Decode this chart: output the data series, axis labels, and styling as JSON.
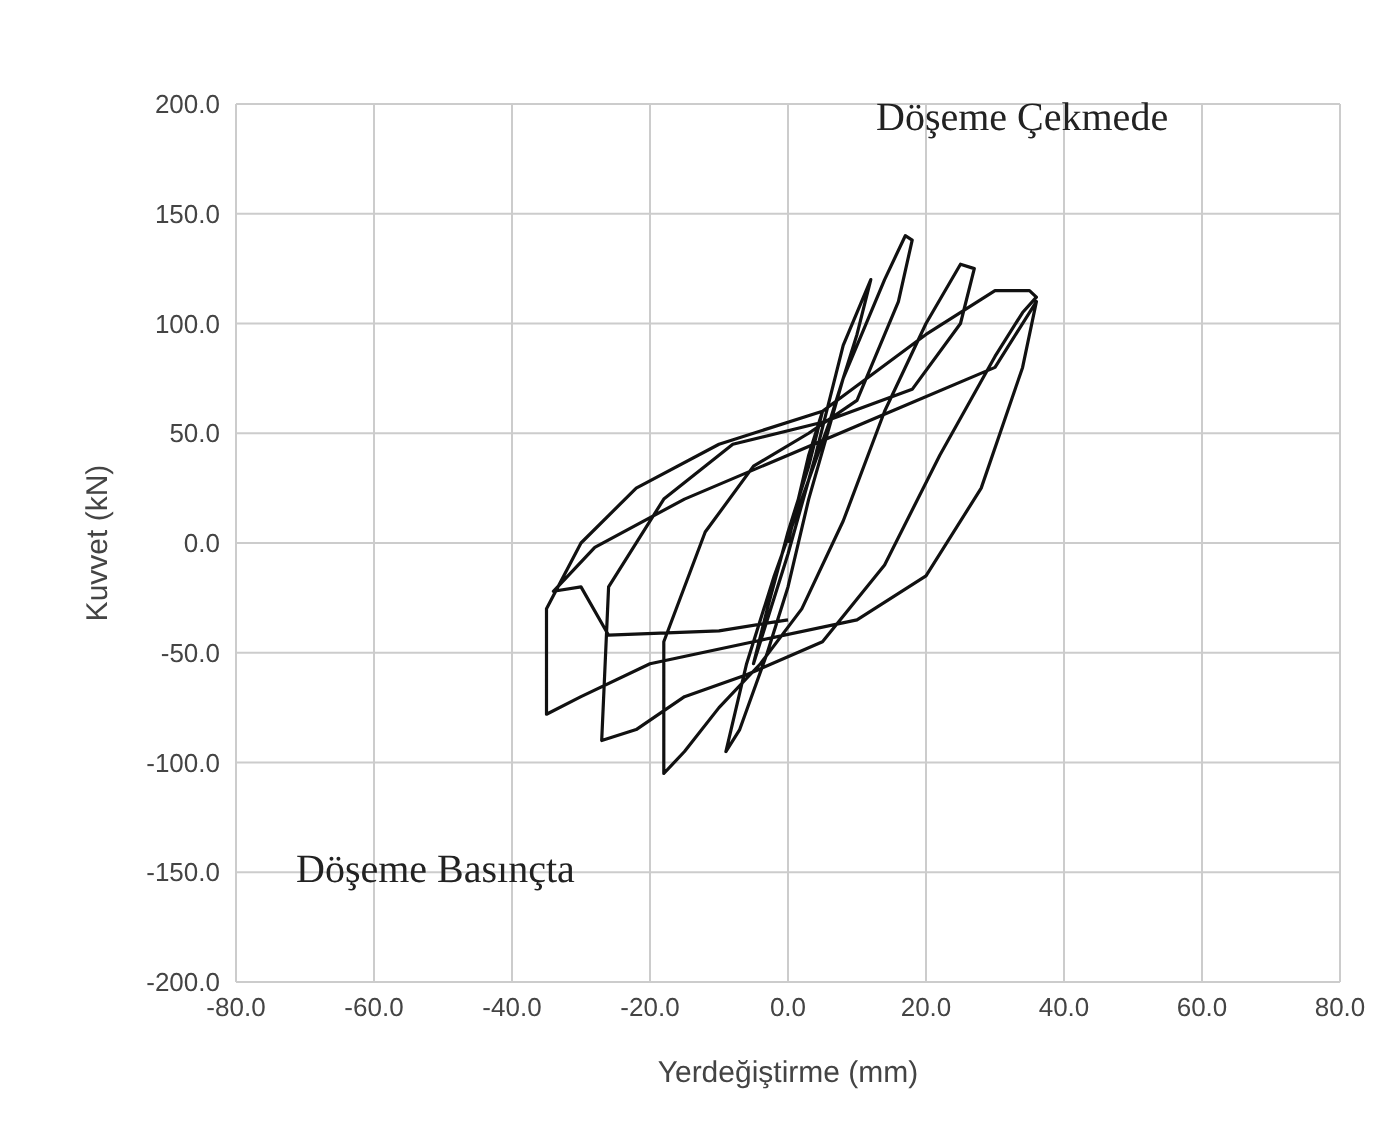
{
  "chart_data": {
    "type": "line",
    "xlabel": "Yerdeğiştirme (mm)",
    "ylabel": "Kuvvet (kN)",
    "annotations": [
      "Döşeme Çekmede",
      "Döşeme Basınçta"
    ],
    "series": [
      {
        "color": "#111111",
        "x": [
          0,
          3,
          5,
          3,
          0,
          -3,
          -5,
          -3,
          0,
          4,
          8,
          12,
          10,
          6,
          2,
          -2,
          -6,
          -9,
          -7,
          -3,
          0,
          3,
          8,
          14,
          17,
          18,
          16,
          10,
          3,
          -5,
          -12,
          -18,
          -18,
          -15,
          -10,
          -4,
          2,
          8,
          14,
          20,
          25,
          27,
          25,
          18,
          5,
          -8,
          -18,
          -26,
          -27,
          -22,
          -15,
          -6,
          5,
          14,
          22,
          30,
          34,
          36,
          35,
          30,
          20,
          5,
          -10,
          -22,
          -30,
          -35,
          -35,
          -30,
          -20,
          -5,
          10,
          20,
          28,
          34,
          36,
          30,
          15,
          0,
          -15,
          -28,
          -34,
          -30,
          -26,
          -10,
          0
        ],
        "values": [
          0,
          40,
          60,
          35,
          5,
          -30,
          -55,
          -35,
          -5,
          40,
          90,
          120,
          95,
          55,
          20,
          -15,
          -55,
          -95,
          -85,
          -50,
          -20,
          20,
          75,
          120,
          140,
          138,
          110,
          65,
          50,
          35,
          5,
          -45,
          -105,
          -95,
          -75,
          -55,
          -30,
          10,
          60,
          100,
          127,
          125,
          100,
          70,
          55,
          45,
          20,
          -20,
          -90,
          -85,
          -70,
          -60,
          -45,
          -10,
          40,
          85,
          105,
          112,
          115,
          115,
          95,
          60,
          45,
          25,
          0,
          -30,
          -78,
          -70,
          -55,
          -45,
          -35,
          -15,
          25,
          80,
          110,
          80,
          60,
          40,
          20,
          -2,
          -22,
          -20,
          -42,
          -40,
          -35
        ]
      }
    ],
    "xlim": [
      -80,
      80
    ],
    "xticks": [
      {
        "value": -80,
        "label": "-80.0"
      },
      {
        "value": -60,
        "label": "-60.0"
      },
      {
        "value": -40,
        "label": "-40.0"
      },
      {
        "value": -20,
        "label": "-20.0"
      },
      {
        "value": 0,
        "label": "0.0"
      },
      {
        "value": 20,
        "label": "20.0"
      },
      {
        "value": 40,
        "label": "40.0"
      },
      {
        "value": 60,
        "label": "60.0"
      },
      {
        "value": 80,
        "label": "80.0"
      }
    ],
    "ylim": [
      -200,
      200
    ],
    "yticks": [
      {
        "value": -200,
        "label": "-200.0"
      },
      {
        "value": -150,
        "label": "-150.0"
      },
      {
        "value": -100,
        "label": "-100.0"
      },
      {
        "value": -50,
        "label": "-50.0"
      },
      {
        "value": 0,
        "label": "0.0"
      },
      {
        "value": 50,
        "label": "50.0"
      },
      {
        "value": 100,
        "label": "100.0"
      },
      {
        "value": 150,
        "label": "150.0"
      },
      {
        "value": 200,
        "label": "200.0"
      }
    ],
    "grid": true,
    "marker": "none",
    "line_style": "solid"
  }
}
